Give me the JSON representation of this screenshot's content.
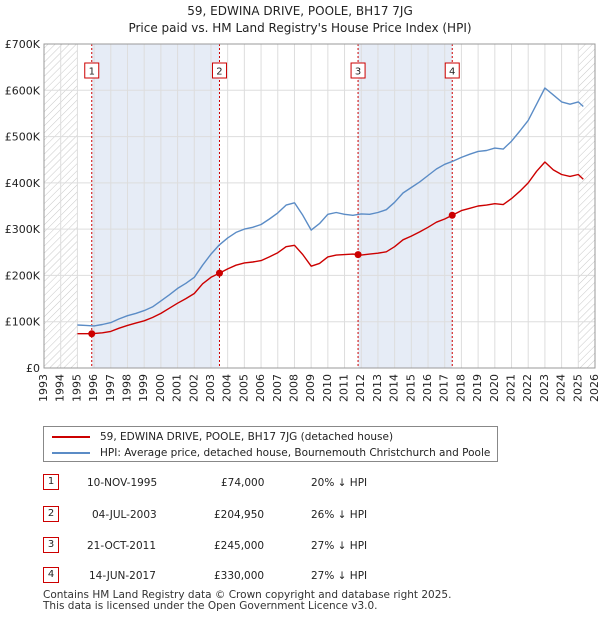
{
  "title_line1": "59, EDWINA DRIVE, POOLE, BH17 7JG",
  "title_line2": "Price paid vs. HM Land Registry's House Price Index (HPI)",
  "legend": {
    "red_label": "59, EDWINA DRIVE, POOLE, BH17 7JG (detached house)",
    "blue_label": "HPI: Average price, detached house, Bournemouth Christchurch and Poole"
  },
  "colors": {
    "red": "#cc0000",
    "blue": "#5b8cc6",
    "shade": "#dde6f3",
    "grid": "#dddddd"
  },
  "sales": [
    {
      "num": "1",
      "date": "10-NOV-1995",
      "price": "£74,000",
      "hpi": "20% ↓ HPI"
    },
    {
      "num": "2",
      "date": "04-JUL-2003",
      "price": "£204,950",
      "hpi": "26% ↓ HPI"
    },
    {
      "num": "3",
      "date": "21-OCT-2011",
      "price": "£245,000",
      "hpi": "27% ↓ HPI"
    },
    {
      "num": "4",
      "date": "14-JUN-2017",
      "price": "£330,000",
      "hpi": "27% ↓ HPI"
    }
  ],
  "footer_line1": "Contains HM Land Registry data © Crown copyright and database right 2025.",
  "footer_line2": "This data is licensed under the Open Government Licence v3.0.",
  "chart_data": {
    "type": "line",
    "title": "59, EDWINA DRIVE, POOLE, BH17 7JG — Price paid vs. HM Land Registry's House Price Index (HPI)",
    "xlim": [
      1993,
      2026
    ],
    "ylim": [
      0,
      700000
    ],
    "x_ticks": [
      1993,
      1994,
      1995,
      1996,
      1997,
      1998,
      1999,
      2000,
      2001,
      2002,
      2003,
      2004,
      2005,
      2006,
      2007,
      2008,
      2009,
      2010,
      2011,
      2012,
      2013,
      2014,
      2015,
      2016,
      2017,
      2018,
      2019,
      2020,
      2021,
      2022,
      2023,
      2024,
      2025,
      2026
    ],
    "y_ticks": [
      {
        "value": 0,
        "label": "£0"
      },
      {
        "value": 100000,
        "label": "£100K"
      },
      {
        "value": 200000,
        "label": "£200K"
      },
      {
        "value": 300000,
        "label": "£300K"
      },
      {
        "value": 400000,
        "label": "£400K"
      },
      {
        "value": 500000,
        "label": "£500K"
      },
      {
        "value": 600000,
        "label": "£600K"
      },
      {
        "value": 700000,
        "label": "£700K"
      }
    ],
    "hatched_ranges": [
      [
        1993,
        1995.0
      ],
      [
        2025.0,
        2026
      ]
    ],
    "series": [
      {
        "name": "HPI: Average price, detached house, Bournemouth Christchurch and Poole",
        "color": "#5b8cc6",
        "points": [
          [
            1995.0,
            93000
          ],
          [
            1995.5,
            92000
          ],
          [
            1996.0,
            91000
          ],
          [
            1996.5,
            94000
          ],
          [
            1997.0,
            98000
          ],
          [
            1997.5,
            106000
          ],
          [
            1998.0,
            113000
          ],
          [
            1998.5,
            118000
          ],
          [
            1999.0,
            124000
          ],
          [
            1999.5,
            132000
          ],
          [
            2000.0,
            145000
          ],
          [
            2000.5,
            158000
          ],
          [
            2001.0,
            172000
          ],
          [
            2001.5,
            183000
          ],
          [
            2002.0,
            196000
          ],
          [
            2002.5,
            222000
          ],
          [
            2003.0,
            246000
          ],
          [
            2003.5,
            266000
          ],
          [
            2004.0,
            281000
          ],
          [
            2004.5,
            293000
          ],
          [
            2005.0,
            300000
          ],
          [
            2005.5,
            304000
          ],
          [
            2006.0,
            310000
          ],
          [
            2006.5,
            322000
          ],
          [
            2007.0,
            335000
          ],
          [
            2007.5,
            352000
          ],
          [
            2008.0,
            357000
          ],
          [
            2008.5,
            330000
          ],
          [
            2009.0,
            298000
          ],
          [
            2009.5,
            312000
          ],
          [
            2010.0,
            332000
          ],
          [
            2010.5,
            336000
          ],
          [
            2011.0,
            332000
          ],
          [
            2011.5,
            330000
          ],
          [
            2012.0,
            333000
          ],
          [
            2012.5,
            332000
          ],
          [
            2013.0,
            336000
          ],
          [
            2013.5,
            342000
          ],
          [
            2014.0,
            358000
          ],
          [
            2014.5,
            378000
          ],
          [
            2015.0,
            390000
          ],
          [
            2015.5,
            402000
          ],
          [
            2016.0,
            416000
          ],
          [
            2016.5,
            430000
          ],
          [
            2017.0,
            440000
          ],
          [
            2017.5,
            447000
          ],
          [
            2018.0,
            455000
          ],
          [
            2018.5,
            462000
          ],
          [
            2019.0,
            468000
          ],
          [
            2019.5,
            470000
          ],
          [
            2020.0,
            475000
          ],
          [
            2020.5,
            473000
          ],
          [
            2021.0,
            490000
          ],
          [
            2021.5,
            512000
          ],
          [
            2022.0,
            535000
          ],
          [
            2022.5,
            570000
          ],
          [
            2023.0,
            605000
          ],
          [
            2023.5,
            590000
          ],
          [
            2024.0,
            575000
          ],
          [
            2024.5,
            570000
          ],
          [
            2025.0,
            575000
          ],
          [
            2025.3,
            565000
          ]
        ]
      },
      {
        "name": "59, EDWINA DRIVE, POOLE, BH17 7JG (detached house)",
        "color": "#cc0000",
        "points": [
          [
            1995.0,
            74000
          ],
          [
            1995.86,
            74000
          ],
          [
            1996.5,
            76000
          ],
          [
            1997.0,
            79000
          ],
          [
            1997.5,
            86000
          ],
          [
            1998.0,
            92000
          ],
          [
            1998.5,
            97000
          ],
          [
            1999.0,
            102000
          ],
          [
            1999.5,
            109000
          ],
          [
            2000.0,
            118000
          ],
          [
            2000.5,
            129000
          ],
          [
            2001.0,
            140000
          ],
          [
            2001.5,
            150000
          ],
          [
            2002.0,
            161000
          ],
          [
            2002.5,
            182000
          ],
          [
            2003.0,
            196000
          ],
          [
            2003.51,
            204950
          ],
          [
            2004.0,
            214000
          ],
          [
            2004.5,
            222000
          ],
          [
            2005.0,
            227000
          ],
          [
            2005.5,
            229000
          ],
          [
            2006.0,
            232000
          ],
          [
            2006.5,
            240000
          ],
          [
            2007.0,
            249000
          ],
          [
            2007.5,
            262000
          ],
          [
            2008.0,
            265000
          ],
          [
            2008.5,
            245000
          ],
          [
            2009.0,
            220000
          ],
          [
            2009.5,
            226000
          ],
          [
            2010.0,
            240000
          ],
          [
            2010.5,
            244000
          ],
          [
            2011.0,
            245000
          ],
          [
            2011.5,
            246000
          ],
          [
            2011.81,
            245000
          ],
          [
            2012.0,
            244000
          ],
          [
            2012.5,
            246000
          ],
          [
            2013.0,
            248000
          ],
          [
            2013.5,
            251000
          ],
          [
            2014.0,
            262000
          ],
          [
            2014.5,
            277000
          ],
          [
            2015.0,
            285000
          ],
          [
            2015.5,
            294000
          ],
          [
            2016.0,
            304000
          ],
          [
            2016.5,
            315000
          ],
          [
            2017.0,
            322000
          ],
          [
            2017.45,
            330000
          ],
          [
            2018.0,
            340000
          ],
          [
            2018.5,
            345000
          ],
          [
            2019.0,
            350000
          ],
          [
            2019.5,
            352000
          ],
          [
            2020.0,
            355000
          ],
          [
            2020.5,
            353000
          ],
          [
            2021.0,
            366000
          ],
          [
            2021.5,
            382000
          ],
          [
            2022.0,
            400000
          ],
          [
            2022.5,
            425000
          ],
          [
            2023.0,
            445000
          ],
          [
            2023.5,
            428000
          ],
          [
            2024.0,
            418000
          ],
          [
            2024.5,
            414000
          ],
          [
            2025.0,
            418000
          ],
          [
            2025.3,
            408000
          ]
        ]
      }
    ],
    "sale_markers": [
      {
        "num": "1",
        "x": 1995.86,
        "y": 74000
      },
      {
        "num": "2",
        "x": 2003.51,
        "y": 204950
      },
      {
        "num": "3",
        "x": 2011.81,
        "y": 245000
      },
      {
        "num": "4",
        "x": 2017.45,
        "y": 330000
      }
    ],
    "legend_position": "bottom"
  }
}
